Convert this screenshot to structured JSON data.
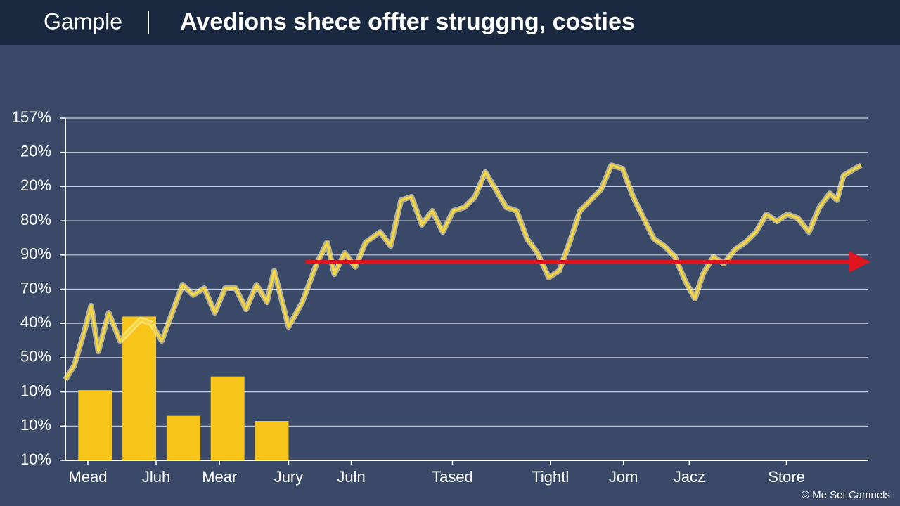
{
  "header": {
    "brand": "Gample"
  },
  "chart_data": {
    "type": "line",
    "title": "Avedions shece offter struggng, costies",
    "xlim": [
      0,
      100
    ],
    "xticks": [
      {
        "value": 2.8,
        "label": "Mead"
      },
      {
        "value": 11.3,
        "label": "Jluh"
      },
      {
        "value": 19.2,
        "label": "Mear"
      },
      {
        "value": 27.8,
        "label": "Jury"
      },
      {
        "value": 35.6,
        "label": "Juln"
      },
      {
        "value": 48.2,
        "label": "Tased"
      },
      {
        "value": 60.4,
        "label": "Tightl"
      },
      {
        "value": 69.5,
        "label": "Jom"
      },
      {
        "value": 77.7,
        "label": "Jacz"
      },
      {
        "value": 89.8,
        "label": "Store"
      }
    ],
    "ylim": [
      0,
      10
    ],
    "yticks": [
      {
        "value": 0,
        "label": "10%"
      },
      {
        "value": 1,
        "label": "10%"
      },
      {
        "value": 2,
        "label": "10%"
      },
      {
        "value": 3,
        "label": "50%"
      },
      {
        "value": 4,
        "label": "40%"
      },
      {
        "value": 5,
        "label": "70%"
      },
      {
        "value": 6,
        "label": "90%"
      },
      {
        "value": 7,
        "label": "80%"
      },
      {
        "value": 8,
        "label": "20%"
      },
      {
        "value": 9,
        "label": "20%"
      },
      {
        "value": 10,
        "label": "157%"
      }
    ],
    "grid": true,
    "bars": {
      "color": "#f7c51a",
      "width": 4.2,
      "x": [
        3.7,
        9.2,
        14.7,
        20.2,
        25.7
      ],
      "values": [
        2.05,
        4.2,
        1.3,
        2.45,
        1.15
      ]
    },
    "line": {
      "color": "#f5d640",
      "x": [
        0,
        1.1,
        2.4,
        3.2,
        4.1,
        5.4,
        6.8,
        8.1,
        9.4,
        10.7,
        12.0,
        13.3,
        14.6,
        15.9,
        17.3,
        18.6,
        19.9,
        21.2,
        22.5,
        23.8,
        25.1,
        26.0,
        27.8,
        29.5,
        31.3,
        32.6,
        33.5,
        34.8,
        36.1,
        37.4,
        39.2,
        40.5,
        41.8,
        43.1,
        44.4,
        45.7,
        47.0,
        48.3,
        49.7,
        51.0,
        52.3,
        53.6,
        54.9,
        56.2,
        57.5,
        58.8,
        60.2,
        61.5,
        62.8,
        64.1,
        65.4,
        66.7,
        68.0,
        69.4,
        70.7,
        72.0,
        73.3,
        74.6,
        75.9,
        77.2,
        78.4,
        79.4,
        80.7,
        82.0,
        83.4,
        84.7,
        86.0,
        87.3,
        88.6,
        89.9,
        91.2,
        92.6,
        93.9,
        95.2,
        96.1,
        96.9,
        98.3,
        99.1
      ],
      "values": [
        2.36,
        2.77,
        3.8,
        4.52,
        3.18,
        4.31,
        3.49,
        3.8,
        4.11,
        4.0,
        3.49,
        4.31,
        5.13,
        4.83,
        5.03,
        4.31,
        5.03,
        5.03,
        4.41,
        5.13,
        4.62,
        5.54,
        3.9,
        4.62,
        5.75,
        6.37,
        5.44,
        6.06,
        5.65,
        6.37,
        6.67,
        6.26,
        7.6,
        7.7,
        6.88,
        7.29,
        6.67,
        7.29,
        7.39,
        7.7,
        8.42,
        7.91,
        7.39,
        7.29,
        6.47,
        6.06,
        5.34,
        5.54,
        6.37,
        7.29,
        7.6,
        7.91,
        8.62,
        8.52,
        7.7,
        7.08,
        6.47,
        6.26,
        5.95,
        5.24,
        4.72,
        5.44,
        5.95,
        5.75,
        6.16,
        6.37,
        6.67,
        7.19,
        6.98,
        7.19,
        7.08,
        6.67,
        7.39,
        7.8,
        7.6,
        8.32,
        8.52,
        8.62
      ]
    },
    "reference_line": {
      "color": "#e0141e",
      "y": 5.8,
      "x": [
        29.9,
        100
      ]
    }
  },
  "footer": {
    "credit": "© Me Set Camnels"
  }
}
